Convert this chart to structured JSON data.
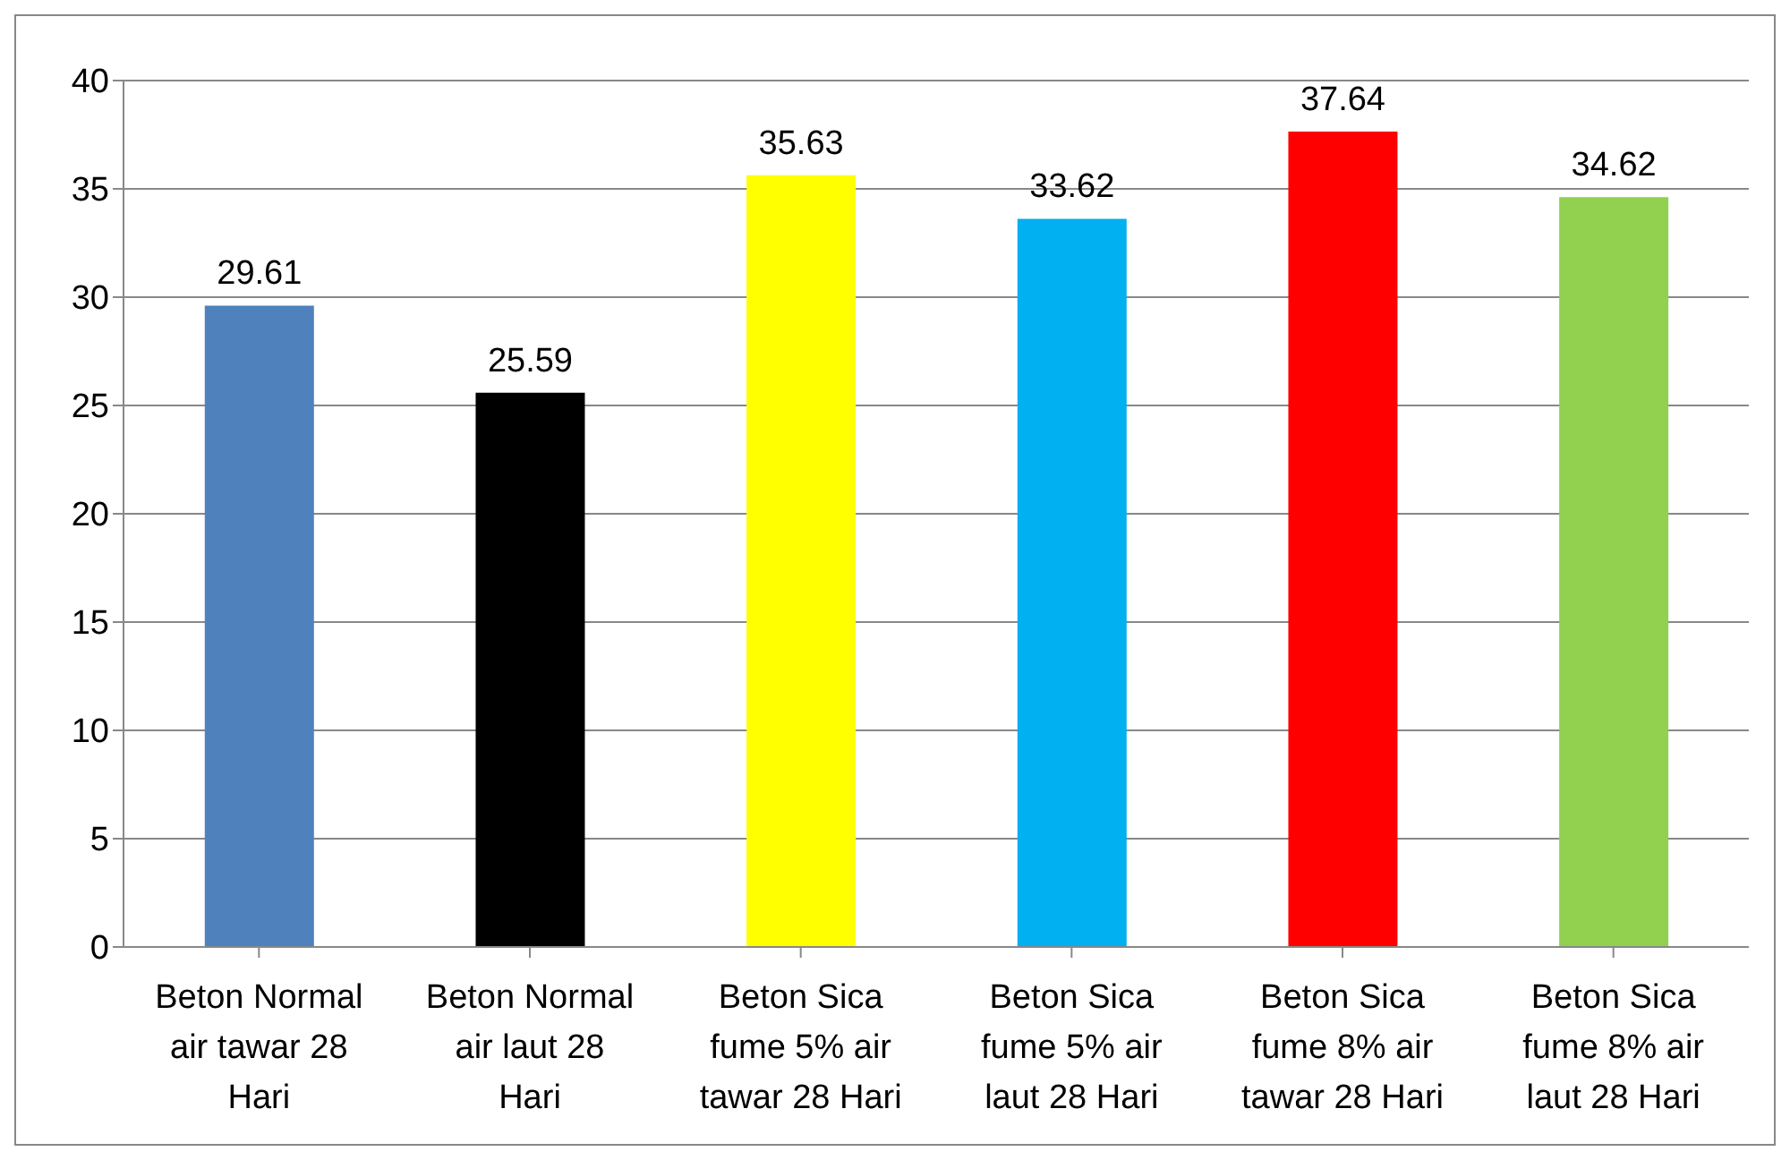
{
  "chart_data": {
    "type": "bar",
    "categories": [
      "Beton Normal air tawar 28 Hari",
      "Beton Normal air laut 28 Hari",
      "Beton Sica fume 5% air tawar 28 Hari",
      "Beton Sica fume 5% air laut 28 Hari",
      "Beton Sica fume 8% air tawar 28 Hari",
      "Beton Sica fume 8% air laut 28 Hari"
    ],
    "values": [
      29.61,
      25.59,
      35.63,
      33.62,
      37.64,
      34.62
    ],
    "colors": [
      "#4f81bd",
      "#000000",
      "#ffff00",
      "#00b0f0",
      "#ff0000",
      "#92d050"
    ],
    "ylim": [
      0,
      40
    ],
    "yticks": [
      0,
      5,
      10,
      15,
      20,
      25,
      30,
      35,
      40
    ],
    "grid": "y",
    "data_labels": true
  }
}
